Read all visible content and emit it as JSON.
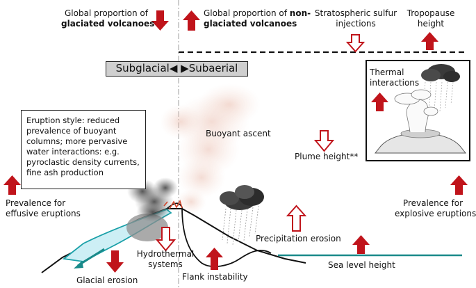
{
  "labels": {
    "glaciated_line1": "Global proportion of",
    "glaciated_line2": "glaciated volcanoes",
    "nonglaciated_line1_prefix": "Global proportion of ",
    "nonglaciated_line1_bold": "non-",
    "nonglaciated_line2": "glaciated volcanoes",
    "strat_line1": "Stratospheric sulfur",
    "strat_line2": "injections",
    "tropo_line1": "Tropopause",
    "tropo_line2": "height",
    "mode_left": "Subglacial",
    "mode_arrows": "◀ ▶",
    "mode_right": "Subaerial",
    "thermal_line1": "Thermal",
    "thermal_line2": "interactions",
    "eruption_style": "Eruption style: reduced prevalence of buoyant columns; more pervasive water interactions: e.g. pyroclastic density currents, fine ash production",
    "buoyant_ascent": "Buoyant ascent",
    "plume_height": "Plume height**",
    "effusive_line1": "Prevalence for",
    "effusive_line2": "effusive eruptions",
    "explosive_line1": "Prevalence for",
    "explosive_line2": "explosive eruptions",
    "precipitation_erosion": "Precipitation erosion",
    "hydro_line1": "Hydrothermal",
    "hydro_line2": "systems",
    "sea_level": "Sea level height",
    "glacial_erosion": "Glacial erosion",
    "flank_instability": "Flank instability"
  },
  "colors": {
    "arrow_red": "#c0141b",
    "sea": "#1a8a8a",
    "ice_fill": "#cdeff5",
    "ice_edge": "#1aa0a8",
    "box_gray": "#cfcfcf"
  },
  "arrows": {
    "glaciated_volcanoes": "down-filled",
    "nonglaciated_volcanoes": "up-filled",
    "stratospheric_sulfur": "down-outline",
    "tropopause_height": "up-filled",
    "thermal_interactions": "up-filled",
    "plume_height": "down-outline",
    "effusive_eruptions": "up-filled",
    "explosive_eruptions": "up-filled",
    "precipitation_erosion": "up-outline",
    "hydrothermal_systems": "down-outline",
    "sea_level_height": "up-filled",
    "glacial_erosion": "down-filled",
    "flank_instability": "up-filled"
  }
}
